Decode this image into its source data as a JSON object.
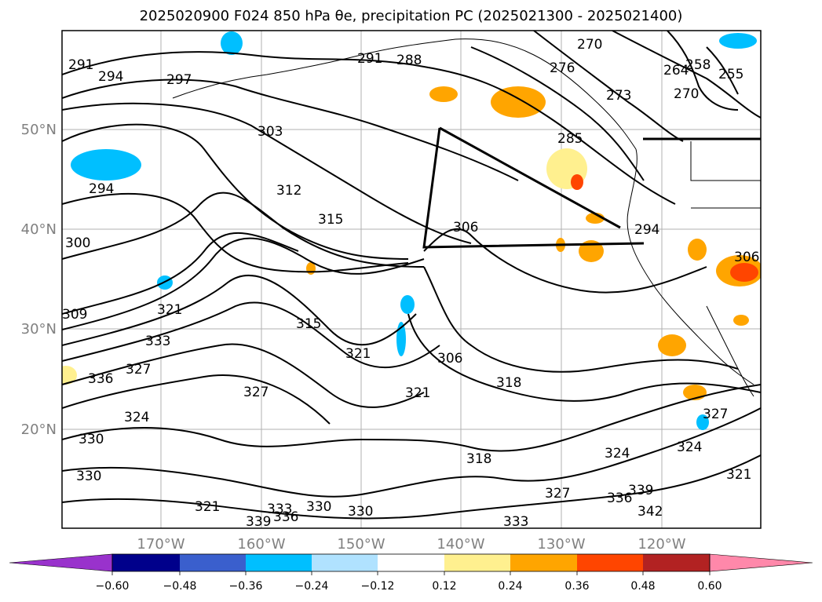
{
  "title": "2025020900 F024 850 hPa θe, precipitation PC (2025021300 - 2025021400)",
  "map": {
    "lon_labels": [
      "170°W",
      "160°W",
      "150°W",
      "140°W",
      "130°W",
      "120°W"
    ],
    "lat_labels": [
      "50°N",
      "40°N",
      "30°N",
      "20°N"
    ],
    "grid": true,
    "contour_color": "#000000",
    "contour_labels": [
      "291",
      "294",
      "297",
      "303",
      "312",
      "315",
      "300",
      "309",
      "321",
      "333",
      "336",
      "327",
      "327",
      "324",
      "330",
      "330",
      "321",
      "333",
      "336",
      "339",
      "330",
      "330",
      "306",
      "315",
      "321",
      "321",
      "306",
      "318",
      "318",
      "324",
      "327",
      "336",
      "339",
      "342",
      "333",
      "324",
      "327",
      "321",
      "306",
      "294",
      "285",
      "273",
      "276",
      "270",
      "291",
      "288",
      "264",
      "258",
      "255",
      "270",
      "294"
    ]
  },
  "colorbar": {
    "ticks": [
      "−0.60",
      "−0.48",
      "−0.36",
      "−0.24",
      "−0.12",
      "0.12",
      "0.24",
      "0.36",
      "0.48",
      "0.60"
    ],
    "colors": [
      "#9932cc",
      "#00008b",
      "#3a5fcd",
      "#00bfff",
      "#b0e2ff",
      "#ffffff",
      "#fff08f",
      "#ffa500",
      "#ff4500",
      "#b22222",
      "#ff88aa"
    ]
  }
}
